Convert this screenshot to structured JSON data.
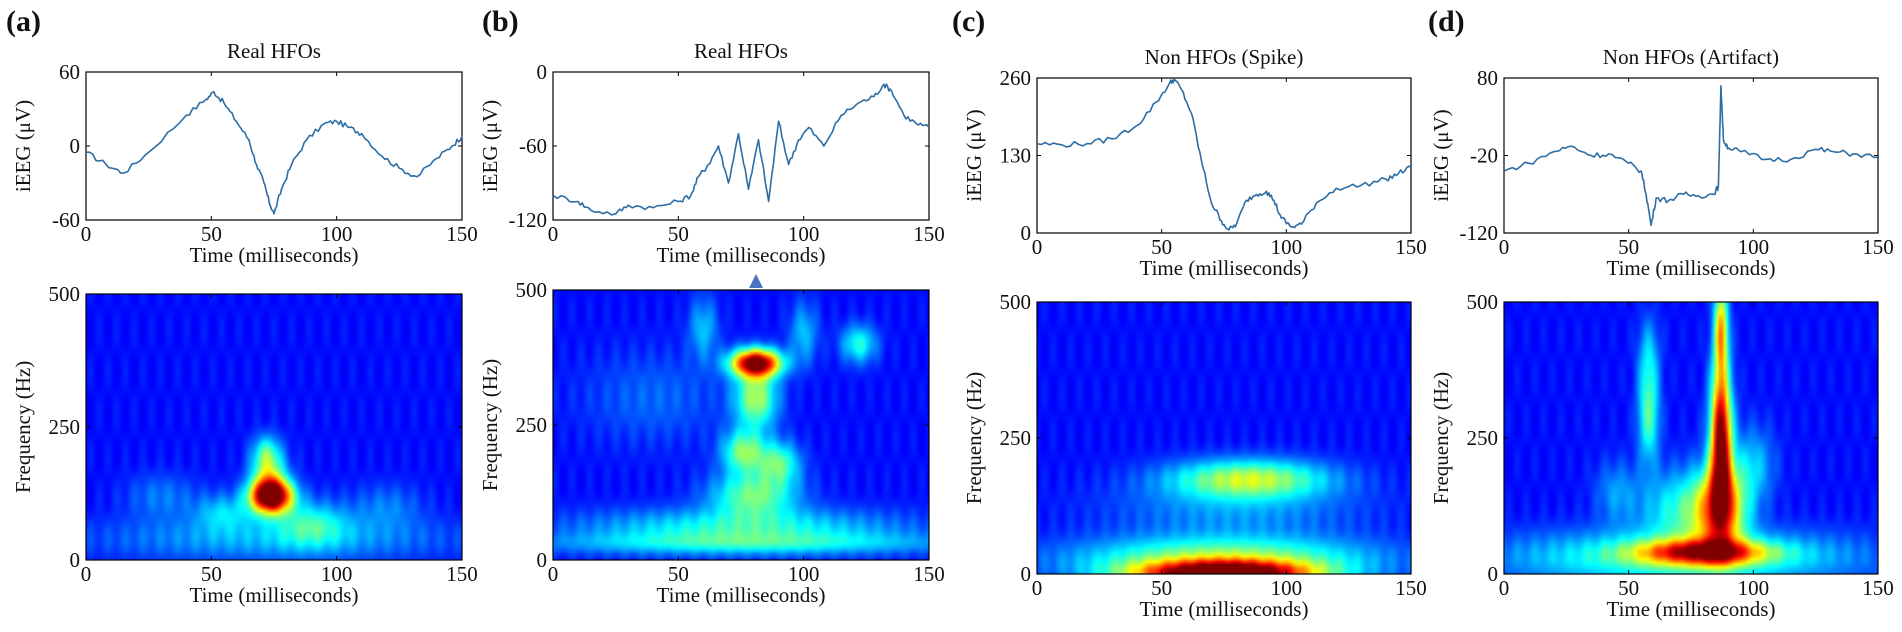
{
  "figure": {
    "heatmap_colormap": "jet",
    "line_color": "#2e6da4",
    "marker_color": "#4a74c0"
  },
  "chart_data": [
    {
      "panel": "(a)",
      "type": "line",
      "title": "Real HFOs",
      "xlabel": "Time (milliseconds)",
      "ylabel": "iEEG (μV)",
      "xlim": [
        0,
        150
      ],
      "ylim": [
        -60,
        60
      ],
      "xticks": [
        0,
        50,
        100,
        150
      ],
      "yticks": [
        -60,
        0,
        60
      ],
      "x": [
        0,
        8,
        15,
        25,
        40,
        48,
        51,
        55,
        60,
        65,
        68,
        71,
        73,
        75,
        78,
        82,
        88,
        95,
        100,
        105,
        110,
        118,
        125,
        132,
        140,
        146,
        150
      ],
      "y": [
        -5,
        -15,
        -22,
        -5,
        25,
        38,
        44,
        35,
        20,
        5,
        -15,
        -30,
        -45,
        -55,
        -35,
        -15,
        5,
        18,
        20,
        15,
        10,
        -8,
        -18,
        -25,
        -10,
        0,
        8
      ]
    },
    {
      "panel": "(a)",
      "type": "heatmap",
      "xlabel": "Time (milliseconds)",
      "ylabel": "Frequency (Hz)",
      "xlim": [
        0,
        150
      ],
      "ylim": [
        0,
        500
      ],
      "xticks": [
        0,
        50,
        100,
        150
      ],
      "yticks": [
        0,
        250,
        500
      ],
      "blobs": [
        {
          "t": 74,
          "f": 120,
          "st": 6,
          "sf": 22,
          "a": 1.0
        },
        {
          "t": 73,
          "f": 150,
          "st": 5,
          "sf": 35,
          "a": 0.4
        },
        {
          "t": 72,
          "f": 200,
          "st": 4,
          "sf": 25,
          "a": 0.28
        },
        {
          "t": 90,
          "f": 70,
          "st": 10,
          "sf": 30,
          "a": 0.25
        },
        {
          "t": 55,
          "f": 90,
          "st": 8,
          "sf": 25,
          "a": 0.2
        },
        {
          "t": 75,
          "f": 40,
          "st": 50,
          "sf": 30,
          "a": 0.18
        },
        {
          "t": 30,
          "f": 120,
          "st": 10,
          "sf": 30,
          "a": 0.12
        },
        {
          "t": 120,
          "f": 100,
          "st": 10,
          "sf": 30,
          "a": 0.12
        }
      ]
    },
    {
      "panel": "(b)",
      "type": "line",
      "title": "Real HFOs",
      "xlabel": "Time (milliseconds)",
      "ylabel": "iEEG (μV)",
      "xlim": [
        0,
        150
      ],
      "ylim": [
        -120,
        0
      ],
      "xticks": [
        0,
        50,
        100,
        150
      ],
      "yticks": [
        -120,
        -60,
        0
      ],
      "x": [
        0,
        10,
        15,
        25,
        30,
        40,
        50,
        55,
        58,
        62,
        66,
        70,
        74,
        78,
        82,
        86,
        90,
        94,
        98,
        102,
        108,
        115,
        122,
        128,
        132,
        135,
        140,
        145,
        150
      ],
      "y": [
        -100,
        -105,
        -112,
        -115,
        -108,
        -110,
        -105,
        -100,
        -85,
        -75,
        -60,
        -90,
        -50,
        -95,
        -55,
        -105,
        -40,
        -75,
        -55,
        -45,
        -60,
        -35,
        -25,
        -20,
        -10,
        -15,
        -35,
        -42,
        -45
      ]
    },
    {
      "panel": "(b)",
      "type": "heatmap",
      "xlabel": "Time (milliseconds)",
      "ylabel": "Frequency (Hz)",
      "xlim": [
        0,
        150
      ],
      "ylim": [
        0,
        500
      ],
      "xticks": [
        0,
        50,
        100,
        150
      ],
      "yticks": [
        0,
        250,
        500
      ],
      "blobs": [
        {
          "t": 81,
          "f": 365,
          "st": 7,
          "sf": 18,
          "a": 1.0
        },
        {
          "t": 81,
          "f": 300,
          "st": 6,
          "sf": 40,
          "a": 0.45
        },
        {
          "t": 76,
          "f": 200,
          "st": 6,
          "sf": 28,
          "a": 0.4
        },
        {
          "t": 90,
          "f": 180,
          "st": 6,
          "sf": 28,
          "a": 0.35
        },
        {
          "t": 80,
          "f": 120,
          "st": 12,
          "sf": 30,
          "a": 0.38
        },
        {
          "t": 75,
          "f": 60,
          "st": 45,
          "sf": 25,
          "a": 0.28
        },
        {
          "t": 80,
          "f": 30,
          "st": 60,
          "sf": 15,
          "a": 0.22
        },
        {
          "t": 122,
          "f": 400,
          "st": 5,
          "sf": 25,
          "a": 0.3
        },
        {
          "t": 60,
          "f": 430,
          "st": 4,
          "sf": 40,
          "a": 0.2
        },
        {
          "t": 100,
          "f": 420,
          "st": 4,
          "sf": 40,
          "a": 0.2
        },
        {
          "t": 40,
          "f": 300,
          "st": 20,
          "sf": 60,
          "a": 0.1
        }
      ]
    },
    {
      "panel": "(c)",
      "type": "line",
      "title": "Non HFOs (Spike)",
      "xlabel": "Time (milliseconds)",
      "ylabel": "iEEG (μV)",
      "xlim": [
        0,
        150
      ],
      "ylim": [
        0,
        260
      ],
      "xticks": [
        0,
        50,
        100,
        150
      ],
      "yticks": [
        0,
        130,
        260
      ],
      "x": [
        0,
        10,
        20,
        30,
        40,
        48,
        53,
        55,
        58,
        62,
        66,
        70,
        74,
        77,
        80,
        84,
        88,
        92,
        95,
        98,
        102,
        106,
        112,
        120,
        130,
        140,
        145,
        150
      ],
      "y": [
        150,
        148,
        150,
        158,
        180,
        220,
        250,
        258,
        240,
        200,
        120,
        50,
        20,
        5,
        15,
        55,
        65,
        70,
        55,
        25,
        10,
        15,
        50,
        75,
        80,
        90,
        100,
        110
      ]
    },
    {
      "panel": "(c)",
      "type": "heatmap",
      "xlabel": "Time (milliseconds)",
      "ylabel": "Frequency (Hz)",
      "xlim": [
        0,
        150
      ],
      "ylim": [
        0,
        500
      ],
      "xticks": [
        0,
        50,
        100,
        150
      ],
      "yticks": [
        0,
        250,
        500
      ],
      "blobs": [
        {
          "t": 75,
          "f": 0,
          "st": 24,
          "sf": 16,
          "a": 1.0
        },
        {
          "t": 75,
          "f": 25,
          "st": 42,
          "sf": 30,
          "a": 0.45
        },
        {
          "t": 85,
          "f": 175,
          "st": 22,
          "sf": 25,
          "a": 0.45
        },
        {
          "t": 80,
          "f": 120,
          "st": 35,
          "sf": 40,
          "a": 0.15
        }
      ]
    },
    {
      "panel": "(d)",
      "type": "line",
      "title": "Non HFOs (Artifact)",
      "xlabel": "Time (milliseconds)",
      "ylabel": "iEEG (μV)",
      "xlim": [
        0,
        150
      ],
      "ylim": [
        -120,
        80
      ],
      "xticks": [
        0,
        50,
        100,
        150
      ],
      "yticks": [
        -120,
        -20,
        80
      ],
      "x": [
        0,
        10,
        20,
        27,
        35,
        42,
        50,
        55,
        57,
        59,
        61,
        66,
        72,
        78,
        84,
        86,
        87,
        88,
        90,
        95,
        105,
        115,
        125,
        132,
        140,
        150
      ],
      "y": [
        -40,
        -30,
        -15,
        -8,
        -20,
        -18,
        -30,
        -40,
        -70,
        -110,
        -75,
        -78,
        -70,
        -72,
        -70,
        -60,
        70,
        0,
        -10,
        -15,
        -25,
        -25,
        -12,
        -15,
        -18,
        -22
      ]
    },
    {
      "panel": "(d)",
      "type": "heatmap",
      "xlabel": "Time (milliseconds)",
      "ylabel": "Frequency (Hz)",
      "xlim": [
        0,
        150
      ],
      "ylim": [
        0,
        500
      ],
      "xticks": [
        0,
        50,
        100,
        150
      ],
      "yticks": [
        0,
        250,
        500
      ],
      "blobs": [
        {
          "t": 87,
          "f": 250,
          "st": 3,
          "sf": 90,
          "a": 1.0
        },
        {
          "t": 87,
          "f": 450,
          "st": 2,
          "sf": 60,
          "a": 0.6
        },
        {
          "t": 87,
          "f": 120,
          "st": 7,
          "sf": 55,
          "a": 0.65
        },
        {
          "t": 80,
          "f": 40,
          "st": 18,
          "sf": 16,
          "a": 0.6
        },
        {
          "t": 70,
          "f": 30,
          "st": 50,
          "sf": 35,
          "a": 0.35
        },
        {
          "t": 58,
          "f": 290,
          "st": 3,
          "sf": 60,
          "a": 0.35
        },
        {
          "t": 58,
          "f": 400,
          "st": 3,
          "sf": 50,
          "a": 0.2
        },
        {
          "t": 72,
          "f": 120,
          "st": 12,
          "sf": 50,
          "a": 0.3
        },
        {
          "t": 45,
          "f": 150,
          "st": 6,
          "sf": 40,
          "a": 0.15
        },
        {
          "t": 100,
          "f": 200,
          "st": 6,
          "sf": 50,
          "a": 0.2
        }
      ]
    }
  ],
  "panel_labels": [
    "(a)",
    "(b)",
    "(c)",
    "(d)"
  ]
}
